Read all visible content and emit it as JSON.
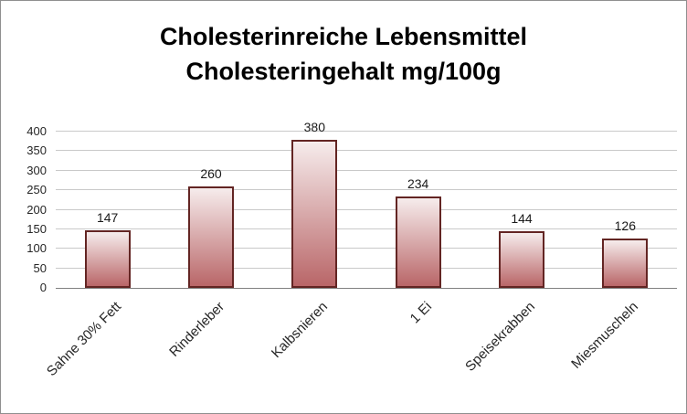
{
  "chart": {
    "title_line1": "Cholesterinreiche Lebensmittel",
    "title_line2": "Cholesteringehalt mg/100g"
  },
  "chart_data": {
    "type": "bar",
    "title": "Cholesterinreiche Lebensmittel Cholesteringehalt mg/100g",
    "categories": [
      "Sahne 30% Fett",
      "Rinderleber",
      "Kalbsnieren",
      "1 Ei",
      "Speisekrabben",
      "Miesmuscheln"
    ],
    "values": [
      147,
      260,
      380,
      234,
      144,
      126
    ],
    "value_labels": [
      "147",
      "260",
      "380",
      "234",
      "144",
      "126"
    ],
    "xlabel": "",
    "ylabel": "",
    "ylim": [
      0,
      400
    ],
    "ytick_step": 50,
    "ytick_labels": [
      "0",
      "50",
      "100",
      "150",
      "200",
      "250",
      "300",
      "350",
      "400"
    ],
    "grid": true,
    "legend": "none",
    "colors": {
      "bar_fill_top": "#f6ecec",
      "bar_fill_bottom": "#b96668",
      "bar_border": "#632523",
      "gridline": "#c9c9c9",
      "axis_line": "#808080",
      "title_text": "#000000",
      "tick_text": "#262626"
    }
  }
}
